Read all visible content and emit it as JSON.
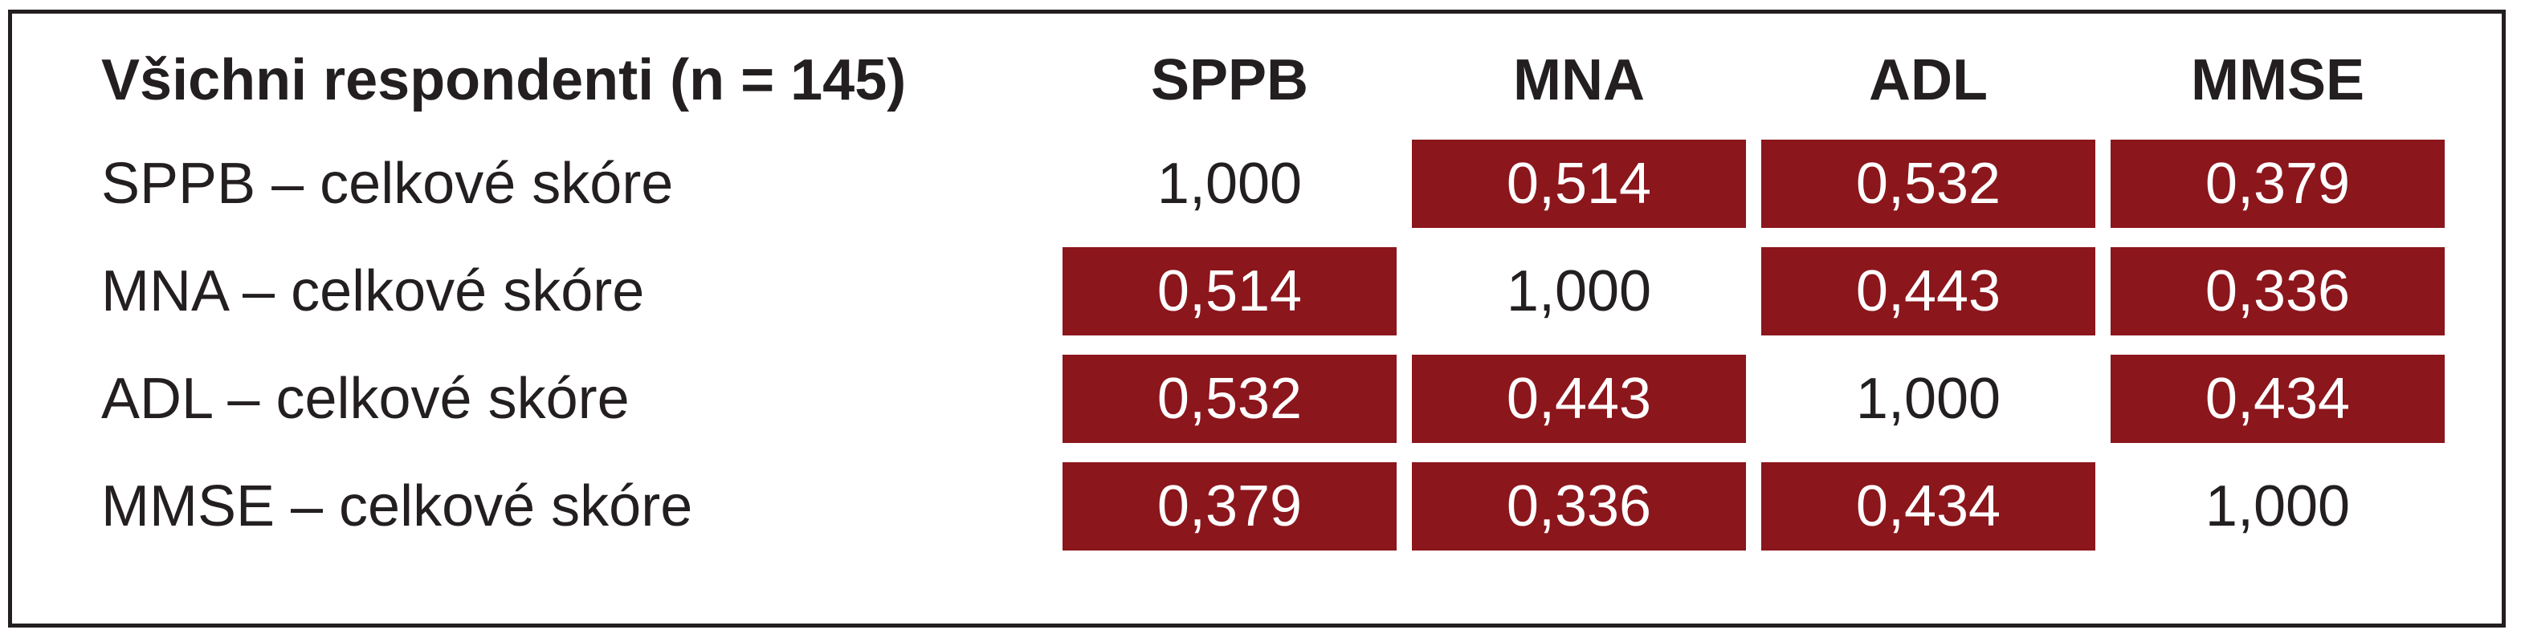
{
  "table": {
    "title": "Všichni respondenti (n = 145)",
    "columns": [
      "SPPB",
      "MNA",
      "ADL",
      "MMSE"
    ],
    "rows": [
      {
        "label": "SPPB – celkové skóre",
        "values": [
          "1,000",
          "0,514",
          "0,532",
          "0,379"
        ],
        "highlighted": [
          false,
          true,
          true,
          true
        ]
      },
      {
        "label": "MNA – celkové skóre",
        "values": [
          "0,514",
          "1,000",
          "0,443",
          "0,336"
        ],
        "highlighted": [
          true,
          false,
          true,
          true
        ]
      },
      {
        "label": "ADL – celkové skóre",
        "values": [
          "0,532",
          "0,443",
          "1,000",
          "0,434"
        ],
        "highlighted": [
          true,
          true,
          false,
          true
        ]
      },
      {
        "label": "MMSE – celkové skóre",
        "values": [
          "0,379",
          "0,336",
          "0,434",
          "1,000"
        ],
        "highlighted": [
          true,
          true,
          true,
          false
        ]
      }
    ]
  },
  "colors": {
    "highlight_fill": "#8b161c",
    "highlight_text": "#ffffff",
    "text": "#231f20",
    "border": "#231f20"
  }
}
